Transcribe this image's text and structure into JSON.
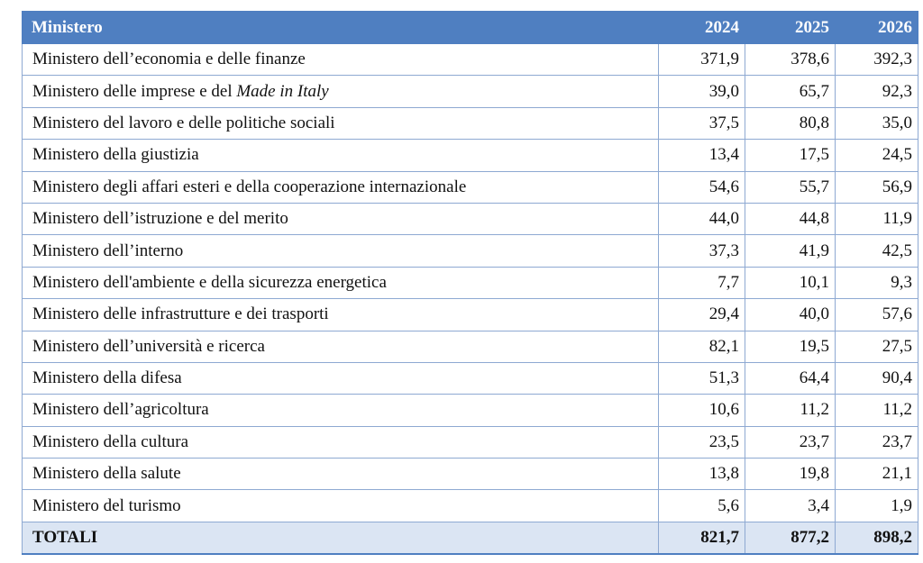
{
  "header": {
    "col_ministry": "Ministero",
    "years": [
      "2024",
      "2025",
      "2026"
    ]
  },
  "rows": [
    {
      "prefix": "Ministero dell’economia e delle finanze",
      "italic": "",
      "values": [
        "371,9",
        "378,6",
        "392,3"
      ]
    },
    {
      "prefix": "Ministero delle imprese e del ",
      "italic": "Made in Italy",
      "values": [
        "39,0",
        "65,7",
        "92,3"
      ]
    },
    {
      "prefix": "Ministero del lavoro e delle politiche sociali",
      "italic": "",
      "values": [
        "37,5",
        "80,8",
        "35,0"
      ]
    },
    {
      "prefix": "Ministero della giustizia",
      "italic": "",
      "values": [
        "13,4",
        "17,5",
        "24,5"
      ]
    },
    {
      "prefix": "Ministero degli affari esteri e della cooperazione internazionale",
      "italic": "",
      "values": [
        "54,6",
        "55,7",
        "56,9"
      ]
    },
    {
      "prefix": "Ministero dell’istruzione e del merito",
      "italic": "",
      "values": [
        "44,0",
        "44,8",
        "11,9"
      ]
    },
    {
      "prefix": "Ministero dell’interno",
      "italic": "",
      "values": [
        "37,3",
        "41,9",
        "42,5"
      ]
    },
    {
      "prefix": "Ministero dell'ambiente e della sicurezza energetica",
      "italic": "",
      "values": [
        "7,7",
        "10,1",
        "9,3"
      ]
    },
    {
      "prefix": "Ministero delle infrastrutture e dei trasporti",
      "italic": "",
      "values": [
        "29,4",
        "40,0",
        "57,6"
      ]
    },
    {
      "prefix": "Ministero dell’università e ricerca",
      "italic": "",
      "values": [
        "82,1",
        "19,5",
        "27,5"
      ]
    },
    {
      "prefix": "Ministero della difesa",
      "italic": "",
      "values": [
        "51,3",
        "64,4",
        "90,4"
      ]
    },
    {
      "prefix": "Ministero dell’agricoltura",
      "italic": "",
      "values": [
        "10,6",
        "11,2",
        "11,2"
      ]
    },
    {
      "prefix": "Ministero della cultura",
      "italic": "",
      "values": [
        "23,5",
        "23,7",
        "23,7"
      ]
    },
    {
      "prefix": "Ministero della salute",
      "italic": "",
      "values": [
        "13,8",
        "19,8",
        "21,1"
      ]
    },
    {
      "prefix": "Ministero del turismo",
      "italic": "",
      "values": [
        "5,6",
        "3,4",
        "1,9"
      ]
    }
  ],
  "totals": {
    "label": "TOTALI",
    "values": [
      "821,7",
      "877,2",
      "898,2"
    ]
  },
  "colors": {
    "header_bg": "#4f7fc1",
    "header_text": "#ffffff",
    "border": "#8ea9d2",
    "totals_bg": "#dbe5f3"
  }
}
